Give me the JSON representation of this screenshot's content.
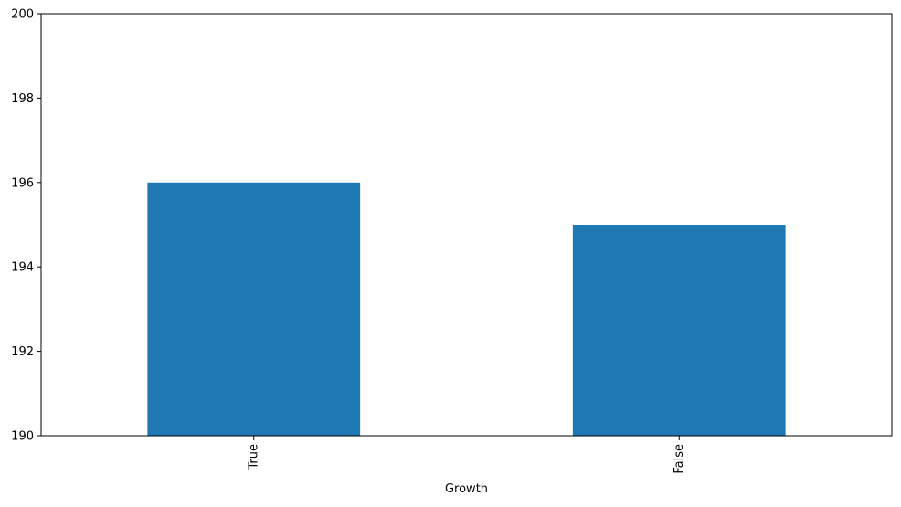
{
  "chart_data": {
    "type": "bar",
    "title": "",
    "xlabel": "Growth",
    "ylabel": "",
    "categories": [
      "True",
      "False"
    ],
    "values": [
      196,
      195
    ],
    "ylim": [
      190,
      200
    ],
    "yticks": [
      190,
      192,
      194,
      196,
      198,
      200
    ],
    "ytick_labels": [
      "190",
      "192",
      "194",
      "196",
      "198",
      "200"
    ],
    "bar_color": "#1f77b4",
    "grid": false,
    "legend": false
  }
}
